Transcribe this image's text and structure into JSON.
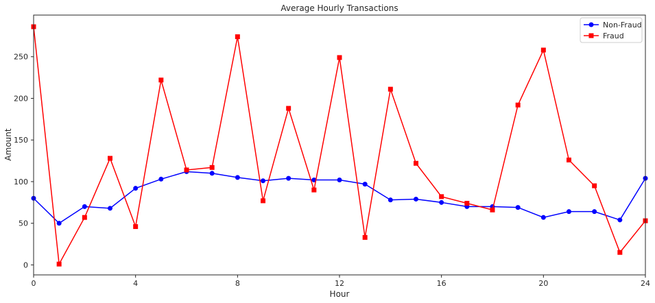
{
  "chart_data": {
    "type": "line",
    "title": "Average Hourly Transactions",
    "xlabel": "Hour",
    "ylabel": "Amount",
    "xlim": [
      0,
      24
    ],
    "ylim": [
      -12,
      300
    ],
    "xticks": [
      0,
      4,
      8,
      12,
      16,
      20,
      24
    ],
    "yticks": [
      0,
      50,
      100,
      150,
      200,
      250
    ],
    "grid": false,
    "legend_position": "top-right",
    "x": [
      0,
      1,
      2,
      3,
      4,
      5,
      6,
      7,
      8,
      9,
      10,
      11,
      12,
      13,
      14,
      15,
      16,
      17,
      18,
      19,
      20,
      21,
      22,
      23,
      24
    ],
    "series": [
      {
        "name": "Non-Fraud",
        "color": "#0000ff",
        "marker": "circle",
        "values": [
          80,
          50,
          70,
          68,
          92,
          103,
          112,
          110,
          105,
          101,
          104,
          102,
          102,
          97,
          78,
          79,
          75,
          70,
          70,
          69,
          57,
          64,
          64,
          54,
          104
        ]
      },
      {
        "name": "Fraud",
        "color": "#ff0000",
        "marker": "square",
        "values": [
          286,
          1,
          57,
          128,
          46,
          222,
          114,
          117,
          274,
          77,
          188,
          90,
          249,
          33,
          211,
          122,
          82,
          74,
          66,
          192,
          258,
          126,
          95,
          15,
          53
        ]
      }
    ]
  }
}
